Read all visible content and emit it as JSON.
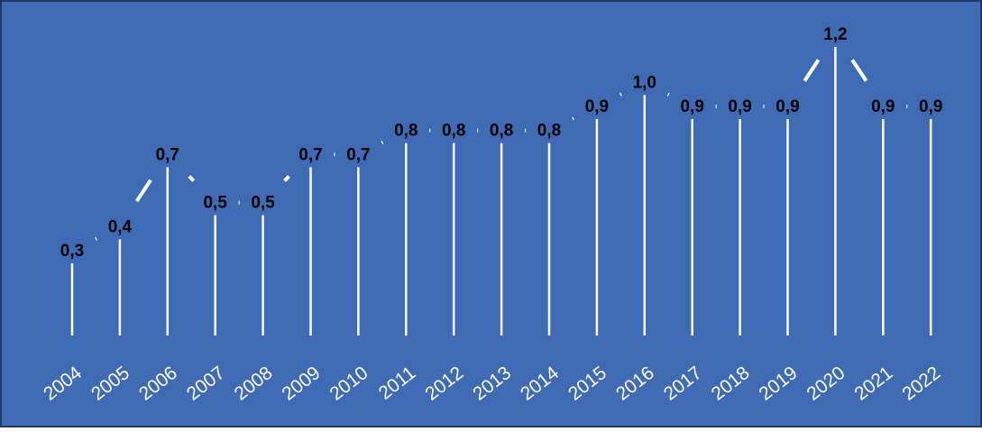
{
  "chart_data": {
    "type": "line",
    "title": "",
    "xlabel": "",
    "ylabel": "",
    "categories": [
      "2004",
      "2005",
      "2006",
      "2007",
      "2008",
      "2009",
      "2010",
      "2011",
      "2012",
      "2013",
      "2014",
      "2015",
      "2016",
      "2017",
      "2018",
      "2019",
      "2020",
      "2021",
      "2022"
    ],
    "values": [
      0.3,
      0.4,
      0.7,
      0.5,
      0.5,
      0.7,
      0.7,
      0.8,
      0.8,
      0.8,
      0.8,
      0.9,
      1.0,
      0.9,
      0.9,
      0.9,
      1.2,
      0.9,
      0.9
    ],
    "value_labels": [
      "0,3",
      "0,4",
      "0,7",
      "0,5",
      "0,5",
      "0,7",
      "0,7",
      "0,8",
      "0,8",
      "0,8",
      "0,8",
      "0,9",
      "1,0",
      "0,9",
      "0,9",
      "0,9",
      "1,2",
      "0,9",
      "0,9"
    ],
    "ylim": [
      0,
      1.3
    ],
    "grid": false,
    "legend": "none",
    "drop_lines": true,
    "colors": {
      "background": "#3f6ab4",
      "border": "#1f3864",
      "line": "#ffffff",
      "value_label": "#000000",
      "tick_label": "#ffffff"
    }
  }
}
